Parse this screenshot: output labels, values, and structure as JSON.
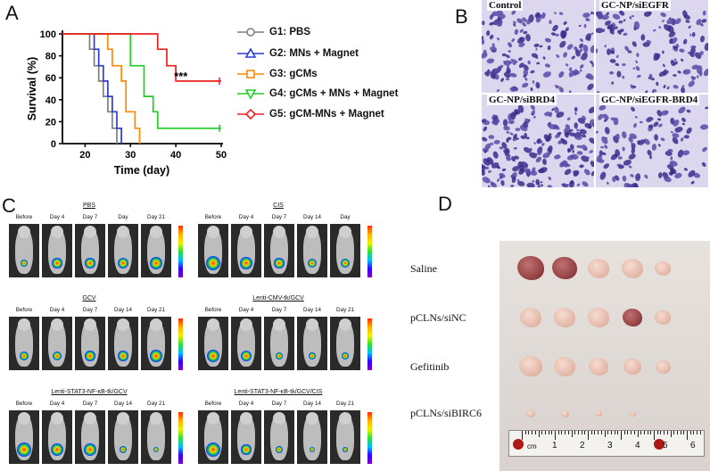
{
  "panels": {
    "a": "A",
    "b": "B",
    "c": "C",
    "d": "D"
  },
  "panel_a": {
    "chart_data": {
      "type": "line",
      "subtype": "kaplan-meier step",
      "xlabel": "Time (day)",
      "ylabel": "Survival (%)",
      "xlim": [
        15,
        50
      ],
      "ylim": [
        0,
        100
      ],
      "xticks": [
        "20",
        "30",
        "40",
        "50"
      ],
      "yticks": [
        "0",
        "20",
        "40",
        "60",
        "80",
        "100"
      ],
      "annotation": "***",
      "series": [
        {
          "name": "G1: PBS",
          "color": "#7f7f7f",
          "marker": "circle",
          "points": [
            [
              15,
              100
            ],
            [
              21,
              100
            ],
            [
              21,
              86
            ],
            [
              22,
              86
            ],
            [
              22,
              71
            ],
            [
              23,
              71
            ],
            [
              23,
              57
            ],
            [
              24,
              57
            ],
            [
              24,
              43
            ],
            [
              25,
              43
            ],
            [
              25,
              29
            ],
            [
              26,
              29
            ],
            [
              26,
              14
            ],
            [
              27,
              14
            ],
            [
              27,
              0
            ]
          ]
        },
        {
          "name": "G2: MNs + Magnet",
          "color": "#2b3bd6",
          "marker": "triangle",
          "points": [
            [
              15,
              100
            ],
            [
              22,
              100
            ],
            [
              22,
              86
            ],
            [
              23,
              86
            ],
            [
              23,
              71
            ],
            [
              24,
              71
            ],
            [
              24,
              57
            ],
            [
              25,
              57
            ],
            [
              25,
              43
            ],
            [
              26,
              43
            ],
            [
              26,
              29
            ],
            [
              27,
              29
            ],
            [
              27,
              14
            ],
            [
              28,
              14
            ],
            [
              28,
              0
            ]
          ]
        },
        {
          "name": "G3: gCMs",
          "color": "#ff8a00",
          "marker": "square",
          "points": [
            [
              15,
              100
            ],
            [
              25,
              100
            ],
            [
              25,
              86
            ],
            [
              26,
              86
            ],
            [
              26,
              71
            ],
            [
              28,
              71
            ],
            [
              28,
              57
            ],
            [
              29,
              57
            ],
            [
              29,
              29
            ],
            [
              31,
              29
            ],
            [
              31,
              14
            ],
            [
              32,
              14
            ],
            [
              32,
              0
            ]
          ]
        },
        {
          "name": "G4: gCMs + MNs + Magnet",
          "color": "#22cc22",
          "marker": "triangle-down",
          "points": [
            [
              15,
              100
            ],
            [
              30,
              100
            ],
            [
              30,
              71
            ],
            [
              33,
              71
            ],
            [
              33,
              43
            ],
            [
              35,
              43
            ],
            [
              35,
              29
            ],
            [
              36,
              29
            ],
            [
              36,
              14
            ],
            [
              50,
              14
            ]
          ]
        },
        {
          "name": "G5: gCM-MNs + Magnet",
          "color": "#ee2020",
          "marker": "diamond",
          "points": [
            [
              15,
              100
            ],
            [
              36,
              100
            ],
            [
              36,
              86
            ],
            [
              38,
              86
            ],
            [
              38,
              71
            ],
            [
              40,
              71
            ],
            [
              40,
              57
            ],
            [
              50,
              57
            ]
          ]
        }
      ]
    }
  },
  "panel_b": {
    "cells": [
      "Control",
      "GC-NP/siEGFR",
      "GC-NP/siBRD4",
      "GC-NP/siEGFR-BRD4"
    ]
  },
  "panel_c": {
    "groups": [
      {
        "title": "PBS",
        "labels": [
          "Before",
          "Day 4",
          "Day 7",
          "Day",
          "Day 21"
        ],
        "signal": [
          0.4,
          0.6,
          0.6,
          0.7,
          0.9
        ]
      },
      {
        "title": "CIS",
        "labels": [
          "Before",
          "Day 4",
          "Day 7",
          "Day 14",
          "Day"
        ],
        "signal": [
          1.0,
          0.8,
          0.6,
          0.5,
          0.5
        ]
      },
      {
        "title": "GCV",
        "labels": [
          "Before",
          "Day 4",
          "Day 7",
          "Day 14",
          "Day 21"
        ],
        "signal": [
          0.5,
          0.5,
          0.6,
          0.6,
          0.8
        ]
      },
      {
        "title": "Lenti-CMV-tk/GCV",
        "labels": [
          "Before",
          "Day 4",
          "Day 7",
          "Day 14",
          "Day 21"
        ],
        "signal": [
          0.9,
          0.7,
          0.4,
          0.3,
          0.3
        ]
      },
      {
        "title": "Lenti-STAT3-NF-κB-tk/GCV",
        "labels": [
          "Before",
          "Day 4",
          "Day 7",
          "Day 14",
          "Day 21"
        ],
        "signal": [
          1.0,
          0.9,
          0.8,
          0.3,
          0.2
        ]
      },
      {
        "title": "Lenti-STAT3-NF-κB-tk/GCV/CIS",
        "labels": [
          "Before",
          "Day 4",
          "Day 7",
          "Day 14",
          "Day 21"
        ],
        "signal": [
          1.0,
          0.6,
          0.3,
          0.2,
          0.1
        ]
      }
    ]
  },
  "panel_d": {
    "rows": [
      "Saline",
      "pCLNs/siNC",
      "Gefitinib",
      "pCLNs/siBIRC6"
    ],
    "ruler_unit": "cm",
    "ruler_numbers": [
      "1",
      "2",
      "3",
      "4",
      "5",
      "6"
    ]
  }
}
